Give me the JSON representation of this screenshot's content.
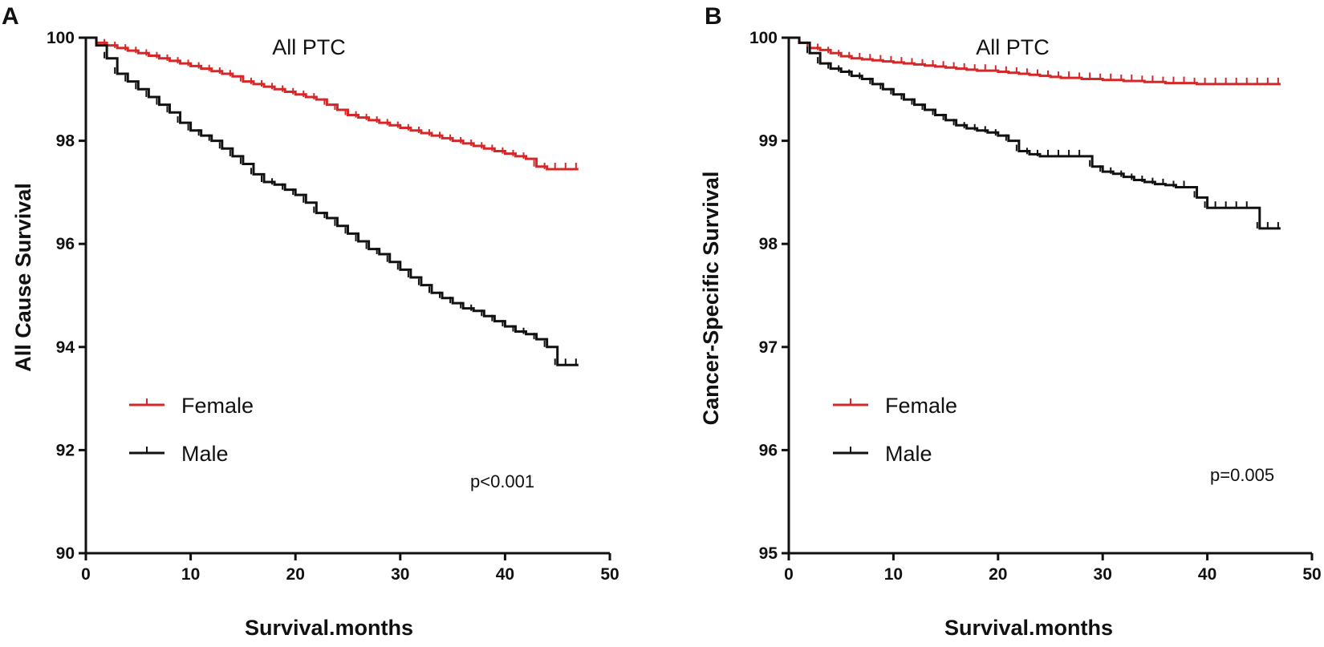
{
  "colors": {
    "female": "#d62728",
    "male": "#111111",
    "axis": "#111111"
  },
  "chart_data": [
    {
      "type": "line",
      "panel": "A",
      "title": "All PTC",
      "xlabel": "Survival.months",
      "ylabel": "All Cause Survival",
      "xlim": [
        0,
        50
      ],
      "ylim": [
        90,
        100
      ],
      "xticks": [
        0,
        10,
        20,
        30,
        40,
        50
      ],
      "yticks": [
        90,
        92,
        94,
        96,
        98,
        100
      ],
      "legend": {
        "position": "lower-left",
        "entries": [
          "Female",
          "Male"
        ]
      },
      "annotation": "p<0.001",
      "series": [
        {
          "name": "Female",
          "x": [
            0,
            1,
            2,
            3,
            4,
            5,
            6,
            7,
            8,
            9,
            10,
            11,
            12,
            13,
            14,
            15,
            16,
            17,
            18,
            19,
            20,
            21,
            22,
            23,
            24,
            25,
            26,
            27,
            28,
            29,
            30,
            31,
            32,
            33,
            34,
            35,
            36,
            37,
            38,
            39,
            40,
            41,
            42,
            43,
            44,
            45,
            46,
            47
          ],
          "y": [
            100,
            99.9,
            99.85,
            99.8,
            99.75,
            99.7,
            99.65,
            99.6,
            99.55,
            99.5,
            99.45,
            99.4,
            99.35,
            99.3,
            99.25,
            99.15,
            99.1,
            99.05,
            99.0,
            98.95,
            98.9,
            98.85,
            98.8,
            98.7,
            98.6,
            98.5,
            98.45,
            98.4,
            98.35,
            98.3,
            98.25,
            98.2,
            98.15,
            98.1,
            98.05,
            98.0,
            97.95,
            97.9,
            97.85,
            97.8,
            97.75,
            97.7,
            97.65,
            97.5,
            97.45,
            97.45,
            97.45,
            97.45
          ]
        },
        {
          "name": "Male",
          "x": [
            0,
            1,
            2,
            3,
            4,
            5,
            6,
            7,
            8,
            9,
            10,
            11,
            12,
            13,
            14,
            15,
            16,
            17,
            18,
            19,
            20,
            21,
            22,
            23,
            24,
            25,
            26,
            27,
            28,
            29,
            30,
            31,
            32,
            33,
            34,
            35,
            36,
            37,
            38,
            39,
            40,
            41,
            42,
            43,
            44,
            45,
            46,
            47
          ],
          "y": [
            100,
            99.85,
            99.6,
            99.3,
            99.15,
            99.0,
            98.85,
            98.7,
            98.55,
            98.35,
            98.2,
            98.1,
            98.0,
            97.85,
            97.7,
            97.55,
            97.35,
            97.2,
            97.15,
            97.05,
            96.95,
            96.8,
            96.6,
            96.5,
            96.35,
            96.2,
            96.05,
            95.9,
            95.8,
            95.65,
            95.5,
            95.35,
            95.2,
            95.05,
            94.95,
            94.85,
            94.75,
            94.7,
            94.6,
            94.5,
            94.4,
            94.3,
            94.25,
            94.15,
            94.0,
            93.65,
            93.65,
            93.65
          ]
        }
      ]
    },
    {
      "type": "line",
      "panel": "B",
      "title": "All PTC",
      "xlabel": "Survival.months",
      "ylabel": "Cancer-Specific Survival",
      "xlim": [
        0,
        50
      ],
      "ylim": [
        95,
        100
      ],
      "xticks": [
        0,
        10,
        20,
        30,
        40,
        50
      ],
      "yticks": [
        95,
        96,
        97,
        98,
        99,
        100
      ],
      "legend": {
        "position": "lower-left",
        "entries": [
          "Female",
          "Male"
        ]
      },
      "annotation": "p=0.005",
      "series": [
        {
          "name": "Female",
          "x": [
            0,
            1,
            2,
            3,
            4,
            5,
            6,
            7,
            8,
            9,
            10,
            11,
            12,
            13,
            14,
            15,
            16,
            17,
            18,
            19,
            20,
            21,
            22,
            23,
            24,
            25,
            26,
            27,
            28,
            29,
            30,
            31,
            32,
            33,
            34,
            35,
            36,
            37,
            38,
            39,
            40,
            41,
            42,
            43,
            44,
            45,
            46,
            47
          ],
          "y": [
            100,
            99.95,
            99.9,
            99.88,
            99.85,
            99.82,
            99.8,
            99.79,
            99.78,
            99.77,
            99.76,
            99.75,
            99.74,
            99.73,
            99.72,
            99.71,
            99.7,
            99.69,
            99.68,
            99.68,
            99.67,
            99.66,
            99.65,
            99.64,
            99.63,
            99.62,
            99.61,
            99.61,
            99.6,
            99.6,
            99.59,
            99.59,
            99.58,
            99.58,
            99.57,
            99.57,
            99.56,
            99.56,
            99.56,
            99.55,
            99.55,
            99.55,
            99.55,
            99.55,
            99.55,
            99.55,
            99.55,
            99.55
          ]
        },
        {
          "name": "Male",
          "x": [
            0,
            1,
            2,
            3,
            4,
            5,
            6,
            7,
            8,
            9,
            10,
            11,
            12,
            13,
            14,
            15,
            16,
            17,
            18,
            19,
            20,
            21,
            22,
            23,
            24,
            25,
            26,
            27,
            28,
            29,
            30,
            31,
            32,
            33,
            34,
            35,
            36,
            37,
            38,
            39,
            40,
            41,
            42,
            43,
            44,
            45,
            46,
            47
          ],
          "y": [
            100,
            99.95,
            99.85,
            99.75,
            99.7,
            99.67,
            99.63,
            99.6,
            99.55,
            99.5,
            99.45,
            99.4,
            99.35,
            99.3,
            99.25,
            99.2,
            99.15,
            99.12,
            99.1,
            99.08,
            99.05,
            99.0,
            98.9,
            98.87,
            98.85,
            98.85,
            98.85,
            98.85,
            98.85,
            98.75,
            98.7,
            98.68,
            98.65,
            98.62,
            98.6,
            98.58,
            98.57,
            98.55,
            98.55,
            98.45,
            98.35,
            98.35,
            98.35,
            98.35,
            98.35,
            98.15,
            98.15,
            98.15
          ]
        }
      ]
    }
  ]
}
